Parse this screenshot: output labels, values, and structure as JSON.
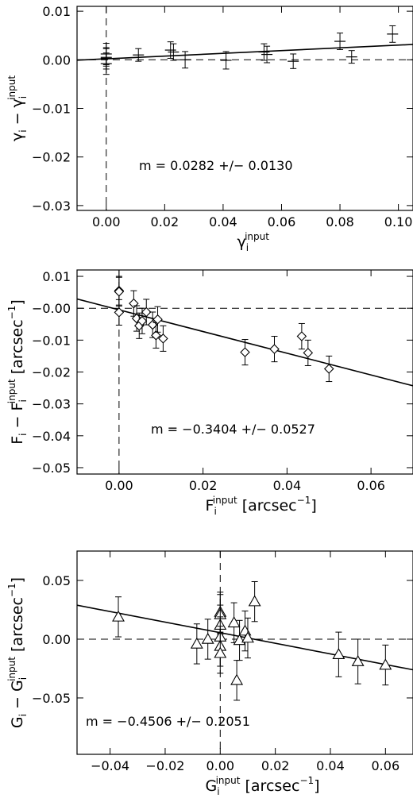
{
  "chart_data": [
    {
      "type": "scatter",
      "xlabel": {
        "main": "γ",
        "sub": "i",
        "sup": "input",
        "unit": ""
      },
      "ylabel": {
        "main": "γ",
        "sub": "i",
        "minus": " − ",
        "main2": "γ",
        "sub2": "i",
        "sup2": "input",
        "unit": ""
      },
      "xlim": [
        -0.01,
        0.105
      ],
      "ylim": [
        -0.031,
        0.011
      ],
      "xticks": [
        0.0,
        0.02,
        0.04,
        0.06,
        0.08,
        0.1
      ],
      "xtick_labels": [
        "0.00",
        "0.02",
        "0.04",
        "0.06",
        "0.08",
        "0.10"
      ],
      "yticks": [
        0.01,
        0.0,
        -0.01,
        -0.02,
        -0.03
      ],
      "ytick_labels": [
        "0.01",
        "0.00",
        "−0.01",
        "−0.02",
        "−0.03"
      ],
      "marker": "plus",
      "points": [
        {
          "x": 0.0,
          "y": 0.0003,
          "err": 0.0022
        },
        {
          "x": 0.0,
          "y": -0.0008,
          "err": 0.0022
        },
        {
          "x": 0.0,
          "y": 0.0012,
          "err": 0.0022
        },
        {
          "x": 0.0,
          "y": 0.0005,
          "err": 0.0018
        },
        {
          "x": 0.011,
          "y": 0.001,
          "err": 0.0013
        },
        {
          "x": 0.022,
          "y": 0.002,
          "err": 0.0017
        },
        {
          "x": 0.023,
          "y": 0.0016,
          "err": 0.0017
        },
        {
          "x": 0.027,
          "y": 0.0,
          "err": 0.0017
        },
        {
          "x": 0.041,
          "y": -0.0001,
          "err": 0.0018
        },
        {
          "x": 0.054,
          "y": 0.0016,
          "err": 0.0017
        },
        {
          "x": 0.055,
          "y": 0.0011,
          "err": 0.0017
        },
        {
          "x": 0.064,
          "y": -0.0003,
          "err": 0.0015
        },
        {
          "x": 0.08,
          "y": 0.0038,
          "err": 0.0017
        },
        {
          "x": 0.084,
          "y": 0.0006,
          "err": 0.0013
        },
        {
          "x": 0.098,
          "y": 0.0053,
          "err": 0.0017
        }
      ],
      "fit": {
        "slope": 0.0282,
        "intercept": 0.0002
      },
      "hline": 0.0,
      "vline": 0.0,
      "annotation": "m = 0.0282 +/− 0.0130"
    },
    {
      "type": "scatter",
      "xlabel": {
        "main": "F",
        "sub": "i",
        "sup": "input",
        "unit": "[arcsec",
        "unit_sup": "−1",
        "unit_end": "]"
      },
      "ylabel": {
        "main": "F",
        "sub": "i",
        "minus": " − ",
        "main2": "F",
        "sub2": "i",
        "sup2": "input",
        "unit": "[arcsec",
        "unit_sup": "−1",
        "unit_end": "]"
      },
      "xlim": [
        -0.01,
        0.07
      ],
      "ylim": [
        -0.052,
        0.012
      ],
      "xticks": [
        0.0,
        0.02,
        0.04,
        0.06
      ],
      "xtick_labels": [
        "0.00",
        "0.02",
        "0.04",
        "0.06"
      ],
      "yticks": [
        0.01,
        0.0,
        -0.01,
        -0.02,
        -0.03,
        -0.04,
        -0.05
      ],
      "ytick_labels": [
        "0.01",
        "−0.00",
        "−0.01",
        "−0.02",
        "−0.03",
        "−0.04",
        "−0.05"
      ],
      "marker": "diamond",
      "points": [
        {
          "x": 0.0,
          "y": 0.0055,
          "err": 0.0045
        },
        {
          "x": 0.0,
          "y": 0.0052,
          "err": 0.0045
        },
        {
          "x": 0.0,
          "y": -0.0013,
          "err": 0.004
        },
        {
          "x": 0.0035,
          "y": 0.0015,
          "err": 0.004
        },
        {
          "x": 0.0042,
          "y": -0.0032,
          "err": 0.004
        },
        {
          "x": 0.0048,
          "y": -0.0055,
          "err": 0.004
        },
        {
          "x": 0.0055,
          "y": -0.004,
          "err": 0.004
        },
        {
          "x": 0.0065,
          "y": -0.0012,
          "err": 0.004
        },
        {
          "x": 0.008,
          "y": -0.0052,
          "err": 0.004
        },
        {
          "x": 0.0088,
          "y": -0.0085,
          "err": 0.004
        },
        {
          "x": 0.0092,
          "y": -0.0035,
          "err": 0.004
        },
        {
          "x": 0.0105,
          "y": -0.0095,
          "err": 0.004
        },
        {
          "x": 0.03,
          "y": -0.0138,
          "err": 0.004
        },
        {
          "x": 0.037,
          "y": -0.0128,
          "err": 0.004
        },
        {
          "x": 0.0435,
          "y": -0.0088,
          "err": 0.004
        },
        {
          "x": 0.045,
          "y": -0.014,
          "err": 0.004
        },
        {
          "x": 0.05,
          "y": -0.019,
          "err": 0.004
        }
      ],
      "fit": {
        "slope": -0.3404,
        "intercept": -0.0005
      },
      "hline": 0.0,
      "vline": 0.0,
      "annotation": "m = −0.3404 +/− 0.0527"
    },
    {
      "type": "scatter",
      "xlabel": {
        "main": "G",
        "sub": "i",
        "sup": "input",
        "unit": "[arcsec",
        "unit_sup": "−1",
        "unit_end": "]"
      },
      "ylabel": {
        "main": "G",
        "sub": "i",
        "minus": " − ",
        "main2": "G",
        "sub2": "i",
        "sup2": "input",
        "unit": "[arcsec",
        "unit_sup": "−1",
        "unit_end": "]"
      },
      "xlim": [
        -0.052,
        0.07
      ],
      "ylim": [
        -0.098,
        0.075
      ],
      "xticks": [
        -0.04,
        -0.02,
        0.0,
        0.02,
        0.04,
        0.06
      ],
      "xtick_labels": [
        "−0.04",
        "−0.02",
        "0.00",
        "0.02",
        "0.04",
        "0.06"
      ],
      "yticks": [
        0.05,
        0.0,
        -0.05
      ],
      "ytick_labels": [
        "0.05",
        "0.00",
        "−0.05"
      ],
      "marker": "triangle",
      "points": [
        {
          "x": -0.037,
          "y": 0.019,
          "err": 0.017
        },
        {
          "x": -0.0085,
          "y": -0.004,
          "err": 0.017
        },
        {
          "x": -0.0045,
          "y": 0.0,
          "err": 0.017
        },
        {
          "x": 0.0,
          "y": 0.023,
          "err": 0.017
        },
        {
          "x": 0.0,
          "y": 0.021,
          "err": 0.017
        },
        {
          "x": 0.0,
          "y": 0.012,
          "err": 0.017
        },
        {
          "x": 0.0,
          "y": 0.002,
          "err": 0.017
        },
        {
          "x": 0.0,
          "y": -0.006,
          "err": 0.017
        },
        {
          "x": 0.0,
          "y": -0.012,
          "err": 0.017
        },
        {
          "x": 0.005,
          "y": 0.014,
          "err": 0.017
        },
        {
          "x": 0.006,
          "y": -0.035,
          "err": 0.017
        },
        {
          "x": 0.007,
          "y": -0.001,
          "err": 0.017
        },
        {
          "x": 0.009,
          "y": 0.007,
          "err": 0.017
        },
        {
          "x": 0.01,
          "y": 0.001,
          "err": 0.017
        },
        {
          "x": 0.0125,
          "y": 0.032,
          "err": 0.017
        },
        {
          "x": 0.043,
          "y": -0.013,
          "err": 0.019
        },
        {
          "x": 0.05,
          "y": -0.019,
          "err": 0.019
        },
        {
          "x": 0.06,
          "y": -0.022,
          "err": 0.017
        }
      ],
      "fit": {
        "slope": -0.4506,
        "intercept": 0.0055
      },
      "hline": 0.0,
      "vline": 0.0,
      "annotation": "m = −0.4506 +/− 0.2051"
    }
  ]
}
